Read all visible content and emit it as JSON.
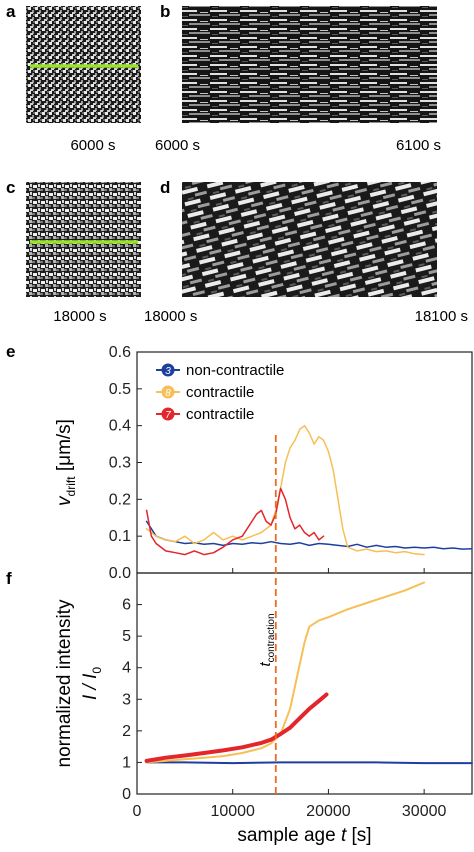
{
  "panels": {
    "a": {
      "label": "a",
      "time": "6000 s"
    },
    "b": {
      "label": "b",
      "time_start": "6000 s",
      "time_end": "6100 s"
    },
    "c": {
      "label": "c",
      "time": "18000 s"
    },
    "d": {
      "label": "d",
      "time_start": "18000 s",
      "time_end": "18100 s"
    },
    "e": {
      "label": "e"
    },
    "f": {
      "label": "f"
    }
  },
  "annotation": {
    "t_contraction_main": "t",
    "t_contraction_sub": "contraction",
    "t_contraction_value": 14500
  },
  "colors": {
    "blue": "#1f3fa0",
    "yellow": "#f7bf55",
    "red": "#e3262b",
    "green": "#9be32a",
    "orange_dash": "#ee6a22"
  },
  "chart_data": [
    {
      "type": "line",
      "panel": "e",
      "ylabel_main": "v",
      "ylabel_sub": "drift",
      "ylabel_unit": " [μm/s]",
      "xlim": [
        0,
        35000
      ],
      "ylim": [
        0,
        0.6
      ],
      "yticks": [
        "0.0",
        "0.1",
        "0.2",
        "0.3",
        "0.4",
        "0.5",
        "0.6"
      ],
      "legend_position": "top-right",
      "series": [
        {
          "name": "non-contractile",
          "marker": "3",
          "color": "#1f3fa0",
          "x": [
            1000,
            1500,
            2000,
            2500,
            3000,
            4000,
            5000,
            6000,
            7000,
            8000,
            9000,
            10000,
            11000,
            12000,
            13000,
            14000,
            15000,
            16000,
            17000,
            18000,
            19000,
            20000,
            21000,
            22000,
            23000,
            24000,
            25000,
            26000,
            27000,
            28000,
            29000,
            30000,
            31000,
            32000,
            33000,
            34000,
            35000
          ],
          "y": [
            0.14,
            0.12,
            0.1,
            0.095,
            0.09,
            0.085,
            0.08,
            0.082,
            0.078,
            0.08,
            0.075,
            0.08,
            0.078,
            0.082,
            0.08,
            0.085,
            0.08,
            0.078,
            0.082,
            0.075,
            0.08,
            0.078,
            0.075,
            0.072,
            0.078,
            0.07,
            0.075,
            0.07,
            0.072,
            0.068,
            0.07,
            0.068,
            0.07,
            0.066,
            0.068,
            0.065,
            0.066
          ]
        },
        {
          "name": "contractile",
          "marker": "8",
          "color": "#f7bf55",
          "x": [
            1000,
            2000,
            3000,
            4000,
            5000,
            6000,
            7000,
            8000,
            9000,
            10000,
            11000,
            12000,
            13000,
            14000,
            14500,
            15000,
            15500,
            16000,
            16500,
            17000,
            17500,
            18000,
            18500,
            19000,
            19500,
            20000,
            20500,
            21000,
            21500,
            22000,
            23000,
            24000,
            25000,
            26000,
            27000,
            28000,
            29000,
            30000
          ],
          "y": [
            0.12,
            0.1,
            0.09,
            0.085,
            0.1,
            0.08,
            0.09,
            0.11,
            0.09,
            0.1,
            0.09,
            0.1,
            0.11,
            0.13,
            0.17,
            0.23,
            0.3,
            0.34,
            0.36,
            0.39,
            0.4,
            0.38,
            0.35,
            0.37,
            0.36,
            0.33,
            0.28,
            0.2,
            0.12,
            0.07,
            0.06,
            0.065,
            0.058,
            0.06,
            0.055,
            0.058,
            0.052,
            0.05
          ]
        },
        {
          "name": "contractile",
          "marker": "7",
          "color": "#e3262b",
          "x": [
            1000,
            1500,
            2000,
            3000,
            4000,
            5000,
            6000,
            7000,
            8000,
            9000,
            10000,
            11000,
            11500,
            12000,
            12500,
            13000,
            13500,
            14000,
            14500,
            15000,
            15500,
            16000,
            16500,
            17000,
            17500,
            18000,
            18500,
            19000,
            19500
          ],
          "y": [
            0.17,
            0.1,
            0.08,
            0.06,
            0.055,
            0.05,
            0.06,
            0.05,
            0.055,
            0.07,
            0.09,
            0.1,
            0.12,
            0.14,
            0.16,
            0.17,
            0.14,
            0.13,
            0.16,
            0.23,
            0.2,
            0.15,
            0.12,
            0.13,
            0.11,
            0.1,
            0.11,
            0.09,
            0.1
          ]
        }
      ]
    },
    {
      "type": "line",
      "panel": "f",
      "ylabel_line1": "normalized intensity",
      "ylabel_line2_main": "I / I",
      "ylabel_line2_sub": "0",
      "xlabel_main": "sample age ",
      "xlabel_var": "t",
      "xlabel_unit": " [s]",
      "xlim": [
        0,
        35000
      ],
      "ylim": [
        0,
        7
      ],
      "xticks": [
        "0",
        "10000",
        "20000",
        "30000"
      ],
      "xtick_values": [
        0,
        10000,
        20000,
        30000
      ],
      "yticks": [
        "0",
        "1",
        "2",
        "3",
        "4",
        "5",
        "6"
      ],
      "series": [
        {
          "name": "non-contractile",
          "color": "#1f3fa0",
          "x": [
            1000,
            5000,
            10000,
            15000,
            20000,
            25000,
            30000,
            35000
          ],
          "y": [
            1.0,
            1.0,
            0.98,
            1.0,
            1.0,
            1.0,
            0.98,
            0.98
          ]
        },
        {
          "name": "contractile",
          "color": "#f7bf55",
          "x": [
            1000,
            3000,
            5000,
            7000,
            9000,
            11000,
            13000,
            14000,
            15000,
            16000,
            16500,
            17000,
            17500,
            18000,
            19000,
            20000,
            22000,
            24000,
            26000,
            28000,
            30000
          ],
          "y": [
            1.0,
            1.05,
            1.1,
            1.15,
            1.2,
            1.3,
            1.45,
            1.6,
            1.9,
            2.7,
            3.4,
            4.1,
            4.8,
            5.3,
            5.5,
            5.6,
            5.85,
            6.05,
            6.25,
            6.45,
            6.7
          ]
        },
        {
          "name": "contractile",
          "color": "#e3262b",
          "x": [
            1000,
            3000,
            5000,
            7000,
            9000,
            11000,
            13000,
            14000,
            15000,
            16000,
            17000,
            18000,
            19000,
            19800
          ],
          "y": [
            1.05,
            1.15,
            1.22,
            1.3,
            1.38,
            1.48,
            1.62,
            1.72,
            1.9,
            2.1,
            2.4,
            2.7,
            2.95,
            3.15
          ]
        }
      ]
    }
  ]
}
